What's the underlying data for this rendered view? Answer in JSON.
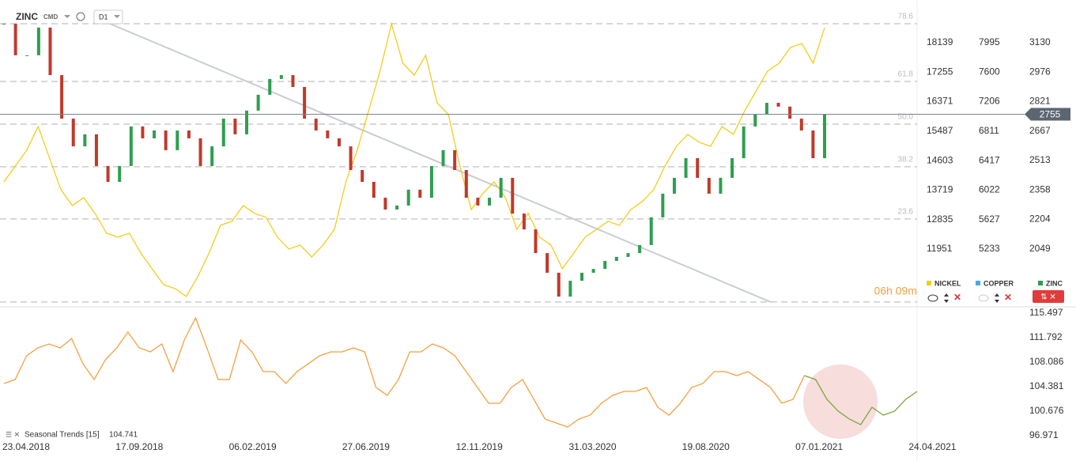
{
  "header": {
    "symbol": "ZINC",
    "market": "CMD",
    "interval": "D1"
  },
  "countdown": "06h 09m",
  "legend": [
    "NICKEL",
    "COPPER",
    "ZINC"
  ],
  "chart_data": [
    {
      "type": "line",
      "date_labels": [
        "23.04.2018",
        "17.09.2018",
        "06.02.2019",
        "27.06.2019",
        "12.11.2019",
        "31.03.2020",
        "19.08.2020",
        "07.01.2021",
        "24.04.2021"
      ],
      "series": [
        {
          "name": "ZINC",
          "color": "#2e9e4f",
          "down_color": "#c0392b",
          "axis": "zinc",
          "values": [
            3229,
            3064,
            3064,
            3209,
            2960,
            2732,
            2587,
            2650,
            2484,
            2401,
            2484,
            2691,
            2629,
            2670,
            2567,
            2670,
            2629,
            2484,
            2587,
            2732,
            2650,
            2774,
            2857,
            2940,
            2960,
            2898,
            2732,
            2670,
            2629,
            2587,
            2463,
            2401,
            2318,
            2256,
            2277,
            2360,
            2318,
            2484,
            2567,
            2463,
            2318,
            2277,
            2318,
            2422,
            2235,
            2152,
            2028,
            1925,
            1800,
            1883,
            1925,
            1945,
            1987,
            2008,
            2028,
            2070,
            2215,
            2339,
            2422,
            2525,
            2422,
            2339,
            2422,
            2525,
            2691,
            2753,
            2815,
            2795,
            2732,
            2670,
            2525,
            2753
          ]
        },
        {
          "name": "NICKEL",
          "color": "#f2cd1c",
          "axis": "nickel",
          "values": [
            13968,
            14442,
            14916,
            15627,
            14679,
            13731,
            13257,
            13494,
            13020,
            12427,
            12309,
            12427,
            11835,
            11361,
            10887,
            10768,
            10531,
            11124,
            11835,
            12664,
            12783,
            13257,
            13020,
            12901,
            12309,
            11953,
            12072,
            11716,
            12072,
            12546,
            13968,
            14916,
            16101,
            17286,
            18708,
            17523,
            17167,
            17760,
            16338,
            15982,
            14442,
            13138,
            13612,
            13968,
            13494,
            12546,
            13020,
            12309,
            12072,
            11361,
            11835,
            12309,
            12546,
            12783,
            12664,
            13138,
            13375,
            13731,
            14442,
            15034,
            15390,
            15153,
            15034,
            15627,
            15390,
            16101,
            16693,
            17286,
            17523,
            17997,
            18115,
            17523,
            18589
          ]
        },
        {
          "name": "COPPER",
          "color": "#4aa8e8",
          "axis": "copper",
          "values": []
        }
      ],
      "zinc_lim": [
        1759,
        3312
      ],
      "zinc_ticks": [
        3130,
        2976,
        2821,
        2667,
        2513,
        2358,
        2204,
        2049
      ],
      "nickel_lim": [
        10292,
        19182
      ],
      "nickel_ticks": [
        18139,
        17255,
        16371,
        15487,
        14603,
        13719,
        12835,
        11951
      ],
      "copper_lim": [
        4492,
        8461
      ],
      "copper_ticks": [
        7995,
        7600,
        7206,
        6811,
        6417,
        6022,
        5627,
        5233
      ],
      "fib_levels": [
        {
          "value": 3229,
          "label": "78.6"
        },
        {
          "value": 2927,
          "label": "61.8"
        },
        {
          "value": 2703,
          "label": "50.0"
        },
        {
          "value": 2480,
          "label": "38.2"
        },
        {
          "value": 2207,
          "label": "23.6"
        },
        {
          "value": 1772
        }
      ],
      "last_price": 2755
    },
    {
      "type": "line",
      "title": "Seasonal Trends [15]",
      "last_value": 104.741,
      "ylim": [
        95.895,
        116.21
      ],
      "yticks": [
        115.497,
        111.792,
        108.086,
        104.381,
        100.676,
        96.971
      ],
      "series": [
        {
          "color": "#f4a040",
          "values": [
            104.86,
            105.46,
            109.04,
            110.24,
            110.83,
            110.24,
            111.67,
            107.85,
            105.46,
            108.44,
            110.24,
            112.63,
            110.24,
            109.64,
            110.83,
            106.65,
            111.43,
            114.78,
            110.24,
            105.46,
            105.46,
            111.43,
            109.64,
            106.65,
            106.65,
            104.86,
            106.65,
            107.85,
            109.04,
            109.64,
            109.64,
            110.24,
            109.64,
            104.26,
            103.07,
            105.46,
            109.64,
            109.64,
            110.83,
            110.24,
            109.04,
            106.65,
            104.26,
            101.87,
            101.87,
            104.26,
            105.46,
            102.47,
            99.48,
            98.88,
            98.28,
            99.48,
            100.08,
            101.87,
            103.07,
            103.66,
            103.66,
            104.26,
            101.27,
            100.08,
            101.87,
            104.26,
            104.86,
            106.65,
            106.65,
            106.05,
            106.65,
            105.46,
            104.26,
            101.87,
            102.47,
            106.05,
            null,
            null,
            null,
            null,
            null,
            null,
            null,
            null,
            null,
            null
          ]
        },
        {
          "color": "#7aa83a",
          "values": [
            null,
            null,
            null,
            null,
            null,
            null,
            null,
            null,
            null,
            null,
            null,
            null,
            null,
            null,
            null,
            null,
            null,
            null,
            null,
            null,
            null,
            null,
            null,
            null,
            null,
            null,
            null,
            null,
            null,
            null,
            null,
            null,
            null,
            null,
            null,
            null,
            null,
            null,
            null,
            null,
            null,
            null,
            null,
            null,
            null,
            null,
            null,
            null,
            null,
            null,
            null,
            null,
            null,
            null,
            null,
            null,
            null,
            null,
            null,
            null,
            null,
            null,
            null,
            null,
            null,
            null,
            null,
            null,
            null,
            null,
            null,
            106.05,
            105.46,
            102.47,
            100.68,
            99.48,
            98.64,
            101.27,
            100.08,
            100.68,
            102.47,
            103.66
          ]
        }
      ]
    }
  ]
}
